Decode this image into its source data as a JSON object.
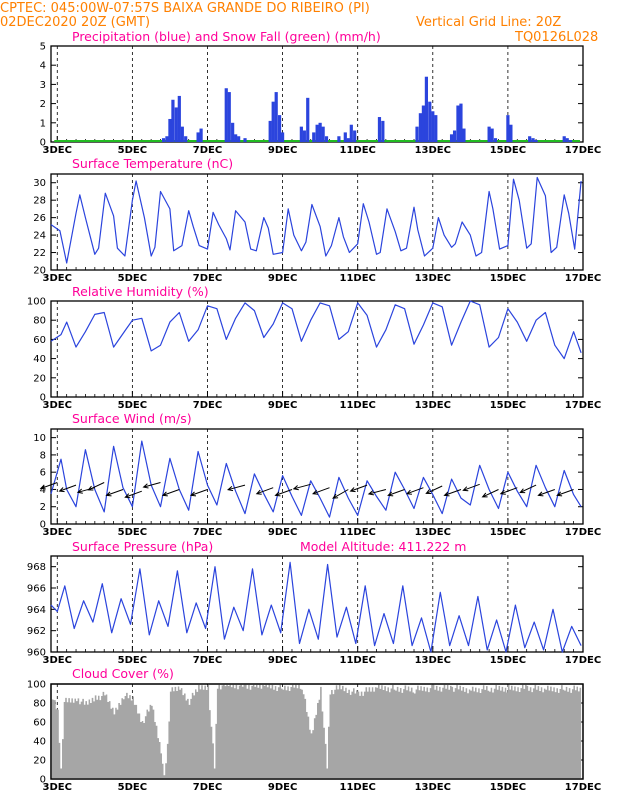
{
  "header": {
    "line1_left": "CPTEC:   045:00W-07:57S  BAIXA GRANDE DO RIBEIRO (PI)",
    "line2_left": "02DEC2020 20Z (GMT)",
    "line2_right": "Vertical Grid Line: 20Z",
    "line3_right": "TQ0126L028"
  },
  "colors": {
    "header": "#ff8000",
    "title": "#ff0099",
    "line": "#2b44dd",
    "precip": "#2b44dd",
    "snow": "#22bb22",
    "cloud": "#a6a6a6",
    "wind_arrow": "#000000"
  },
  "x_axis": {
    "day_start": 2.833,
    "day_end": 17.0,
    "ticks": [
      3,
      5,
      7,
      9,
      11,
      13,
      15,
      17
    ],
    "tick_labels": [
      "3DEC",
      "5DEC",
      "7DEC",
      "9DEC",
      "11DEC",
      "13DEC",
      "15DEC",
      "17DEC"
    ],
    "minor_ticks_per_day": 4
  },
  "chart_data": [
    {
      "type": "bar",
      "title": "Precipitation (blue) and Snow Fall (green) (mm/h)",
      "ylim": [
        0,
        5
      ],
      "yticks": [
        0,
        1,
        2,
        3,
        4,
        5
      ],
      "series": [
        {
          "name": "Precipitation",
          "x_days": [
            5.83,
            5.92,
            6.0,
            6.08,
            6.17,
            6.25,
            6.33,
            6.42,
            6.75,
            6.83,
            7.5,
            7.58,
            7.67,
            7.75,
            7.83,
            8.0,
            8.67,
            8.75,
            8.83,
            8.92,
            9.0,
            9.5,
            9.58,
            9.67,
            9.83,
            9.92,
            10.0,
            10.08,
            10.17,
            10.5,
            10.67,
            10.75,
            10.83,
            10.92,
            11.58,
            11.67,
            12.58,
            12.67,
            12.75,
            12.83,
            12.92,
            13.0,
            13.08,
            13.5,
            13.58,
            13.67,
            13.75,
            13.83,
            14.5,
            14.58,
            14.67,
            15.0,
            15.08,
            15.58,
            15.67,
            15.75,
            16.5,
            16.58,
            16.67
          ],
          "values": [
            0.2,
            0.3,
            1.2,
            2.2,
            1.8,
            2.4,
            0.8,
            0.3,
            0.5,
            0.7,
            2.8,
            2.6,
            1.0,
            0.4,
            0.3,
            0.2,
            1.1,
            2.1,
            2.6,
            1.4,
            0.5,
            0.8,
            0.6,
            2.3,
            0.5,
            0.9,
            1.0,
            0.8,
            0.3,
            0.3,
            0.5,
            0.2,
            0.9,
            0.6,
            1.3,
            1.1,
            0.8,
            1.5,
            1.9,
            3.4,
            2.1,
            1.6,
            1.4,
            0.4,
            0.6,
            1.9,
            2.0,
            0.7,
            0.8,
            0.7,
            0.2,
            1.4,
            0.9,
            0.3,
            0.2,
            0.1,
            0.3,
            0.2,
            0.1
          ]
        },
        {
          "name": "Snow Fall",
          "x_days": [
            2.92,
            16.92
          ],
          "values": [
            0,
            0
          ]
        }
      ]
    },
    {
      "type": "line",
      "title": "Surface Temperature (nC)",
      "ylim": [
        20,
        31
      ],
      "yticks": [
        20,
        22,
        24,
        26,
        28,
        30
      ],
      "x_days": [
        2.833,
        3.07,
        3.25,
        3.5,
        3.6,
        3.75,
        4.0,
        4.1,
        4.28,
        4.5,
        4.6,
        4.8,
        5.0,
        5.1,
        5.32,
        5.5,
        5.6,
        5.75,
        6.0,
        6.1,
        6.32,
        6.5,
        6.62,
        6.78,
        7.0,
        7.15,
        7.3,
        7.5,
        7.6,
        7.75,
        8.0,
        8.15,
        8.3,
        8.5,
        8.62,
        8.75,
        9.0,
        9.15,
        9.3,
        9.5,
        9.62,
        9.78,
        10.0,
        10.15,
        10.3,
        10.5,
        10.62,
        10.78,
        11.0,
        11.15,
        11.3,
        11.5,
        11.6,
        11.78,
        12.0,
        12.15,
        12.3,
        12.5,
        12.6,
        12.78,
        13.0,
        13.15,
        13.3,
        13.5,
        13.6,
        13.78,
        14.0,
        14.15,
        14.3,
        14.5,
        14.6,
        14.78,
        15.0,
        15.15,
        15.3,
        15.5,
        15.62,
        15.78,
        16.0,
        16.15,
        16.3,
        16.5,
        16.62,
        16.78,
        16.95
      ],
      "values": [
        25.2,
        24.5,
        20.8,
        26.5,
        28.6,
        26.0,
        21.8,
        22.5,
        28.8,
        26.2,
        22.5,
        21.6,
        28.0,
        30.2,
        26.0,
        21.6,
        22.6,
        29.0,
        27.0,
        22.2,
        22.8,
        26.8,
        25.0,
        22.8,
        22.4,
        26.6,
        25.2,
        23.6,
        22.3,
        26.8,
        25.5,
        22.4,
        22.2,
        26.0,
        24.8,
        21.8,
        22.0,
        27.0,
        24.0,
        22.2,
        23.2,
        27.5,
        25.0,
        21.6,
        22.8,
        26.0,
        23.8,
        22.0,
        23.0,
        27.6,
        25.5,
        21.8,
        22.0,
        27.0,
        24.4,
        22.2,
        22.5,
        27.2,
        24.6,
        21.6,
        22.5,
        26.0,
        24.0,
        22.6,
        23.0,
        25.5,
        24.0,
        21.6,
        22.0,
        29.0,
        27.0,
        22.4,
        22.8,
        30.4,
        28.0,
        22.5,
        23.0,
        30.6,
        28.5,
        22.0,
        22.6,
        28.6,
        26.5,
        22.4,
        30.2
      ]
    },
    {
      "type": "line",
      "title": "Relative Humidity (%)",
      "ylim": [
        0,
        100
      ],
      "yticks": [
        0,
        20,
        40,
        60,
        80,
        100
      ],
      "x_days": [
        2.833,
        3.1,
        3.25,
        3.5,
        3.75,
        4.0,
        4.25,
        4.5,
        4.75,
        5.0,
        5.25,
        5.5,
        5.75,
        6.0,
        6.25,
        6.5,
        6.75,
        7.0,
        7.25,
        7.5,
        7.75,
        8.0,
        8.25,
        8.5,
        8.75,
        9.0,
        9.25,
        9.5,
        9.75,
        10.0,
        10.25,
        10.5,
        10.75,
        11.0,
        11.25,
        11.5,
        11.75,
        12.0,
        12.25,
        12.5,
        12.75,
        13.0,
        13.25,
        13.5,
        13.75,
        14.0,
        14.25,
        14.5,
        14.75,
        15.0,
        15.25,
        15.5,
        15.75,
        16.0,
        16.25,
        16.5,
        16.75,
        16.95
      ],
      "values": [
        58,
        65,
        78,
        52,
        68,
        86,
        88,
        52,
        66,
        80,
        82,
        48,
        54,
        78,
        88,
        58,
        70,
        95,
        92,
        60,
        82,
        98,
        90,
        62,
        76,
        98,
        92,
        58,
        80,
        98,
        95,
        60,
        68,
        98,
        85,
        52,
        70,
        96,
        92,
        55,
        75,
        98,
        94,
        54,
        78,
        100,
        96,
        52,
        62,
        92,
        78,
        58,
        80,
        88,
        54,
        40,
        68,
        46
      ]
    },
    {
      "type": "line",
      "title": "Surface Wind (m/s)",
      "ylim": [
        0,
        11
      ],
      "yticks": [
        0,
        2,
        4,
        6,
        8,
        10
      ],
      "x_days": [
        2.833,
        3.1,
        3.25,
        3.5,
        3.75,
        4.0,
        4.25,
        4.5,
        4.75,
        5.0,
        5.25,
        5.5,
        5.75,
        6.0,
        6.25,
        6.5,
        6.75,
        7.0,
        7.25,
        7.5,
        7.75,
        8.0,
        8.25,
        8.5,
        8.75,
        9.0,
        9.25,
        9.5,
        9.75,
        10.0,
        10.25,
        10.5,
        10.75,
        11.0,
        11.25,
        11.5,
        11.75,
        12.0,
        12.25,
        12.5,
        12.75,
        13.0,
        13.25,
        13.5,
        13.75,
        14.0,
        14.25,
        14.5,
        14.75,
        15.0,
        15.25,
        15.5,
        15.75,
        16.0,
        16.25,
        16.5,
        16.75,
        16.95
      ],
      "values": [
        3.5,
        7.5,
        4.0,
        2.0,
        8.6,
        4.0,
        1.4,
        9.0,
        4.2,
        2.0,
        9.6,
        4.5,
        2.0,
        7.6,
        4.0,
        1.6,
        8.4,
        4.5,
        2.2,
        7.0,
        3.8,
        1.2,
        5.8,
        3.5,
        1.4,
        5.6,
        3.2,
        1.0,
        5.0,
        3.0,
        0.8,
        5.4,
        3.0,
        1.0,
        5.0,
        3.2,
        1.6,
        6.0,
        4.0,
        1.8,
        5.4,
        3.4,
        1.2,
        5.2,
        3.0,
        2.2,
        6.8,
        4.0,
        1.8,
        6.0,
        3.8,
        2.0,
        6.8,
        4.2,
        2.0,
        6.2,
        3.4,
        2.0
      ],
      "wind_arrows": {
        "x_days": [
          3.0,
          3.5,
          4.0,
          4.25,
          4.75,
          5.25,
          5.75,
          6.25,
          7.0,
          8.0,
          8.75,
          9.25,
          9.75,
          10.25,
          10.75,
          11.25,
          11.75,
          12.25,
          12.75,
          13.25,
          13.75,
          14.25,
          14.75,
          15.25,
          15.75,
          16.25,
          16.75
        ],
        "speed": [
          4.8,
          4.5,
          4.2,
          4.8,
          4.0,
          3.8,
          4.8,
          4.0,
          4.0,
          4.5,
          4.2,
          4.0,
          4.6,
          4.2,
          4.0,
          4.5,
          4.0,
          4.0,
          4.2,
          4.4,
          4.0,
          4.6,
          4.0,
          4.2,
          4.5,
          4.0,
          4.0
        ],
        "dir_deg": [
          200,
          200,
          195,
          205,
          200,
          200,
          195,
          200,
          200,
          195,
          200,
          200,
          195,
          200,
          210,
          200,
          195,
          200,
          200,
          205,
          200,
          200,
          205,
          200,
          205,
          200,
          200
        ]
      }
    },
    {
      "type": "line",
      "title": "Surface Pressure (hPa)",
      "annotation": "Model Altitude: 411.222 m",
      "ylim": [
        960,
        969
      ],
      "yticks": [
        960,
        962,
        964,
        966,
        968
      ],
      "x_days": [
        2.833,
        3.0,
        3.2,
        3.45,
        3.7,
        3.95,
        4.2,
        4.45,
        4.7,
        4.95,
        5.2,
        5.45,
        5.7,
        5.95,
        6.2,
        6.45,
        6.7,
        6.95,
        7.2,
        7.45,
        7.7,
        7.95,
        8.2,
        8.45,
        8.7,
        8.95,
        9.2,
        9.45,
        9.7,
        9.95,
        10.2,
        10.45,
        10.7,
        10.95,
        11.2,
        11.45,
        11.7,
        11.95,
        12.2,
        12.45,
        12.7,
        12.95,
        13.2,
        13.45,
        13.7,
        13.95,
        14.2,
        14.45,
        14.7,
        14.95,
        15.2,
        15.45,
        15.7,
        15.95,
        16.2,
        16.45,
        16.7,
        16.95
      ],
      "values": [
        964.4,
        963.8,
        966.2,
        962.2,
        964.8,
        962.8,
        966.4,
        961.8,
        965.0,
        962.6,
        967.8,
        961.6,
        964.8,
        962.4,
        967.6,
        961.8,
        964.6,
        962.2,
        968.0,
        961.2,
        964.2,
        962.0,
        967.8,
        961.6,
        964.4,
        961.8,
        968.4,
        960.8,
        964.0,
        961.2,
        968.2,
        961.4,
        964.2,
        960.8,
        966.2,
        960.6,
        963.6,
        960.8,
        966.2,
        960.6,
        963.2,
        960.0,
        965.6,
        960.6,
        963.4,
        960.6,
        965.2,
        960.2,
        963.0,
        960.0,
        964.4,
        960.4,
        962.8,
        960.2,
        964.0,
        960.0,
        962.4,
        960.6
      ]
    },
    {
      "type": "area",
      "title": "Cloud Cover (%)",
      "ylim": [
        0,
        100
      ],
      "yticks": [
        0,
        20,
        40,
        60,
        80,
        100
      ],
      "x_days": [
        2.833,
        3.0,
        3.08,
        3.17,
        3.5,
        3.75,
        4.0,
        4.25,
        4.5,
        4.75,
        5.0,
        5.25,
        5.5,
        5.75,
        5.83,
        5.92,
        6.0,
        6.25,
        6.5,
        6.75,
        7.0,
        7.17,
        7.25,
        7.5,
        8.0,
        8.5,
        9.0,
        9.5,
        9.75,
        10.0,
        10.17,
        10.25,
        10.5,
        11.0,
        11.5,
        12.0,
        12.5,
        13.0,
        13.5,
        14.0,
        14.5,
        15.0,
        15.5,
        16.0,
        16.5,
        16.95
      ],
      "values": [
        88,
        70,
        10,
        82,
        85,
        78,
        86,
        88,
        70,
        88,
        84,
        60,
        78,
        30,
        0,
        35,
        92,
        96,
        82,
        96,
        98,
        12,
        98,
        99,
        98,
        98,
        96,
        98,
        45,
        96,
        12,
        92,
        96,
        90,
        96,
        95,
        94,
        96,
        96,
        94,
        95,
        95,
        96,
        94,
        95,
        94
      ]
    }
  ]
}
